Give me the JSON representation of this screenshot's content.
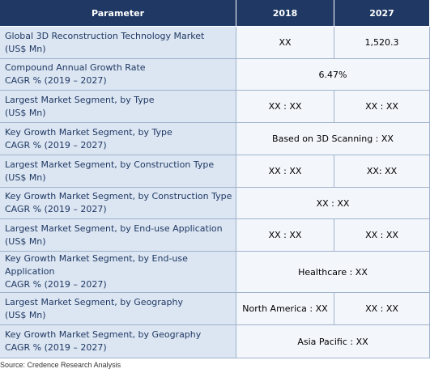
{
  "table": {
    "header": [
      "Parameter",
      "2018",
      "2027"
    ],
    "rows": [
      {
        "parameter": [
          "Global 3D Reconstruction Technology Market",
          "(US$ Mn)"
        ],
        "cells": [
          "XX",
          "1,520.3"
        ]
      },
      {
        "parameter": [
          "Compound Annual Growth Rate",
          "CAGR % (2019 – 2027)"
        ],
        "cells": [
          "6.47%"
        ]
      },
      {
        "parameter": [
          "Largest Market Segment, by Type",
          "(US$ Mn)"
        ],
        "cells": [
          "XX : XX",
          "XX : XX"
        ]
      },
      {
        "parameter": [
          "Key Growth Market Segment, by Type",
          "CAGR % (2019 – 2027)"
        ],
        "cells": [
          "Based on 3D Scanning : XX"
        ]
      },
      {
        "parameter": [
          "Largest Market Segment, by Construction Type",
          "(US$ Mn)"
        ],
        "cells": [
          "XX : XX",
          "XX: XX"
        ]
      },
      {
        "parameter": [
          "Key Growth Market Segment, by Construction Type",
          "CAGR % (2019 – 2027)"
        ],
        "cells": [
          "XX : XX"
        ]
      },
      {
        "parameter": [
          "Largest Market Segment, by End-use Application",
          "(US$ Mn)"
        ],
        "cells": [
          "XX : XX",
          "XX : XX"
        ]
      },
      {
        "parameter": [
          "Key Growth Market Segment, by End-use",
          "Application",
          "CAGR % (2019 – 2027)"
        ],
        "cells": [
          "Healthcare : XX"
        ]
      },
      {
        "parameter": [
          "Largest Market Segment, by Geography",
          "(US$ Mn)"
        ],
        "cells": [
          "North America : XX",
          "XX : XX"
        ]
      },
      {
        "parameter": [
          "Key Growth Market Segment, by Geography",
          "CAGR % (2019 – 2027)"
        ],
        "cells": [
          "Asia Pacific : XX"
        ]
      }
    ],
    "source": "Source: Credence Research Analysis"
  }
}
